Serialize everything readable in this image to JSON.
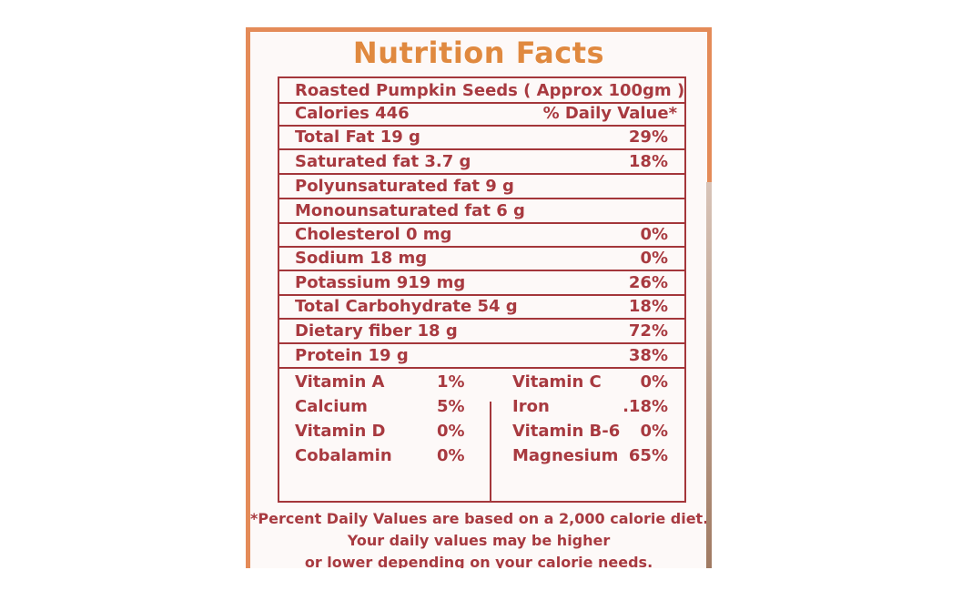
{
  "title": "Nutrition Facts",
  "serving": "Roasted Pumpkin Seeds ( Approx 100gm )",
  "calories": {
    "label": "Calories 446",
    "dv_header": "% Daily Value*"
  },
  "nutrients": [
    {
      "label": "Total Fat 19 g",
      "pct": "29%"
    },
    {
      "label": "Saturated fat 3.7 g",
      "pct": "18%"
    },
    {
      "label": "Polyunsaturated fat 9 g",
      "pct": ""
    },
    {
      "label": "Monounsaturated fat 6 g",
      "pct": ""
    },
    {
      "label": "Cholesterol 0 mg",
      "pct": "0%"
    },
    {
      "label": "Sodium 18 mg",
      "pct": "0%"
    },
    {
      "label": "Potassium 919 mg",
      "pct": "26%"
    },
    {
      "label": "Total Carbohydrate 54 g",
      "pct": "18%"
    },
    {
      "label": "Dietary fiber 18 g",
      "pct": "72%"
    },
    {
      "label": "Protein 19 g",
      "pct": "38%"
    }
  ],
  "vitamins": [
    {
      "left_label": "Vitamin A",
      "left_pct": "1%",
      "right_label": "Vitamin C",
      "right_pct": "0%"
    },
    {
      "left_label": "Calcium",
      "left_pct": "5%",
      "right_label": "Iron",
      "right_pct": ".18%"
    },
    {
      "left_label": "Vitamin D",
      "left_pct": "0%",
      "right_label": "Vitamin B-6",
      "right_pct": "0%"
    },
    {
      "left_label": "Cobalamin",
      "left_pct": "0%",
      "right_label": "Magnesium",
      "right_pct": "65%"
    }
  ],
  "footnote": [
    "*Percent Daily Values are based on a 2,000 calorie diet.",
    "Your daily values may be higher",
    "or lower depending on your calorie needs."
  ]
}
